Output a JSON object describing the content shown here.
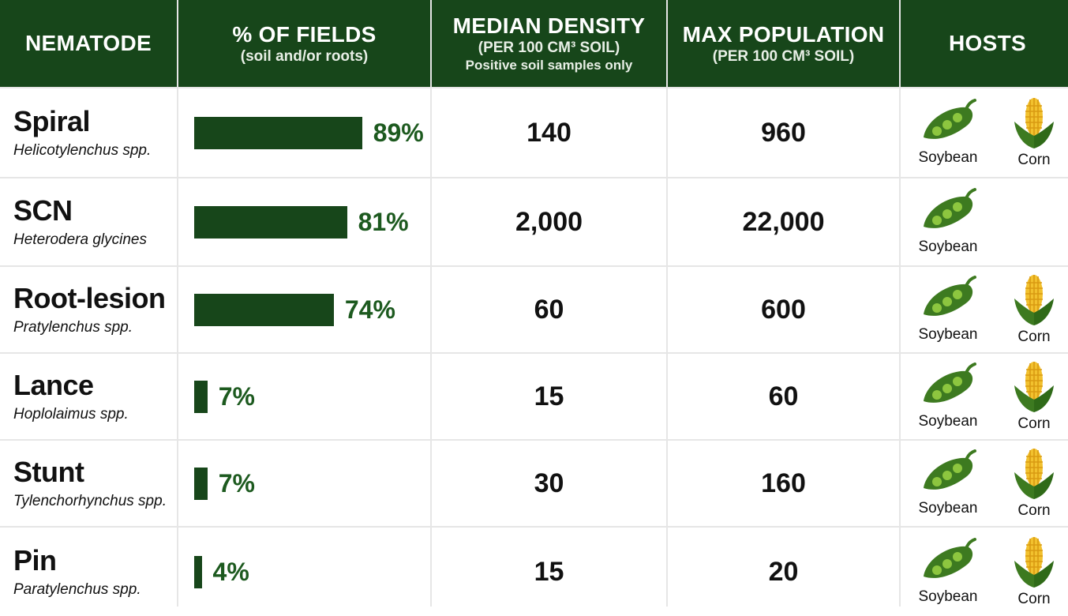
{
  "header": {
    "nematode": "NEMATODE",
    "fields": "% OF FIELDS",
    "fields_sub": "(soil and/or roots)",
    "density": "MEDIAN DENSITY",
    "density_sub": "(PER 100 CM³ SOIL)",
    "density_note": "Positive soil samples only",
    "max": "MAX POPULATION",
    "max_sub": "(PER 100 CM³ SOIL)",
    "hosts": "HOSTS"
  },
  "host_labels": {
    "soybean": "Soybean",
    "corn": "Corn"
  },
  "colors": {
    "header_bg": "#17461a",
    "bar": "#17461a",
    "pct_text": "#1d5a1f"
  },
  "icons": {
    "soybean": "soybean-pod-icon",
    "corn": "corn-cob-icon"
  },
  "chart_data": {
    "type": "table",
    "columns": [
      "NEMATODE",
      "% OF FIELDS",
      "MEDIAN DENSITY",
      "MAX POPULATION",
      "HOSTS"
    ],
    "rows": [
      {
        "common": "Spiral",
        "scientific": "Helicotylenchus spp.",
        "percent": 89,
        "percent_label": "89%",
        "median_density": "140",
        "max_population": "960",
        "hosts": [
          "Soybean",
          "Corn"
        ]
      },
      {
        "common": "SCN",
        "scientific": "Heterodera glycines",
        "percent": 81,
        "percent_label": "81%",
        "median_density": "2,000",
        "max_population": "22,000",
        "hosts": [
          "Soybean"
        ]
      },
      {
        "common": "Root-lesion",
        "scientific": "Pratylenchus spp.",
        "percent": 74,
        "percent_label": "74%",
        "median_density": "60",
        "max_population": "600",
        "hosts": [
          "Soybean",
          "Corn"
        ]
      },
      {
        "common": "Lance",
        "scientific": "Hoplolaimus spp.",
        "percent": 7,
        "percent_label": "7%",
        "median_density": "15",
        "max_population": "60",
        "hosts": [
          "Soybean",
          "Corn"
        ]
      },
      {
        "common": "Stunt",
        "scientific": "Tylenchorhynchus spp.",
        "percent": 7,
        "percent_label": "7%",
        "median_density": "30",
        "max_population": "160",
        "hosts": [
          "Soybean",
          "Corn"
        ]
      },
      {
        "common": "Pin",
        "scientific": "Paratylenchus spp.",
        "percent": 4,
        "percent_label": "4%",
        "median_density": "15",
        "max_population": "20",
        "hosts": [
          "Soybean",
          "Corn"
        ]
      }
    ]
  }
}
